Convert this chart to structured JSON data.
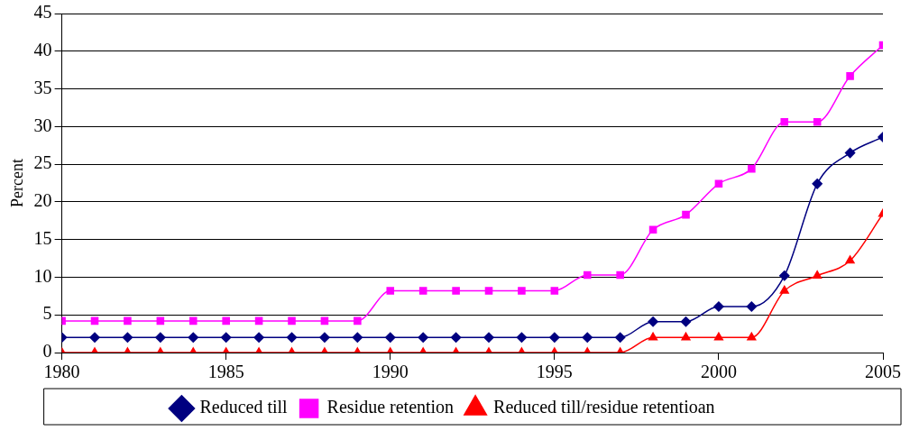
{
  "chart_data": {
    "type": "line",
    "ylabel": "Percent",
    "x": [
      1980,
      1981,
      1982,
      1983,
      1984,
      1985,
      1986,
      1987,
      1988,
      1989,
      1990,
      1991,
      1992,
      1993,
      1994,
      1995,
      1996,
      1997,
      1998,
      1999,
      2000,
      2001,
      2002,
      2003,
      2004,
      2005
    ],
    "series": [
      {
        "name": "Reduced till",
        "color": "#000080",
        "marker": "diamond",
        "values": [
          2,
          2,
          2,
          2,
          2,
          2,
          2,
          2,
          2,
          2,
          2,
          2,
          2,
          2,
          2,
          2,
          2,
          2,
          4.1,
          4.1,
          6.1,
          6.1,
          10.2,
          22.4,
          26.5,
          28.6
        ]
      },
      {
        "name": "Residue retention",
        "color": "#ff00ff",
        "marker": "square",
        "values": [
          4.2,
          4.2,
          4.2,
          4.2,
          4.2,
          4.2,
          4.2,
          4.2,
          4.2,
          4.2,
          8.2,
          8.2,
          8.2,
          8.2,
          8.2,
          8.2,
          10.3,
          10.3,
          16.3,
          18.3,
          22.4,
          24.4,
          30.6,
          30.6,
          36.7,
          40.8
        ]
      },
      {
        "name": "Reduced till/residue retentioan",
        "color": "#ff0000",
        "marker": "triangle",
        "values": [
          0,
          0,
          0,
          0,
          0,
          0,
          0,
          0,
          0,
          0,
          0,
          0,
          0,
          0,
          0,
          0,
          0,
          0,
          2,
          2,
          2,
          2,
          8.2,
          10.2,
          12.2,
          18.4
        ]
      }
    ],
    "xlim": [
      1980,
      2005
    ],
    "xticks": [
      1980,
      1985,
      1990,
      1995,
      2000,
      2005
    ],
    "ylim": [
      0,
      45
    ],
    "yticks": [
      0,
      5,
      10,
      15,
      20,
      25,
      30,
      35,
      40,
      45
    ],
    "grid": "y",
    "legend": "bottom",
    "line_style": "solid"
  }
}
